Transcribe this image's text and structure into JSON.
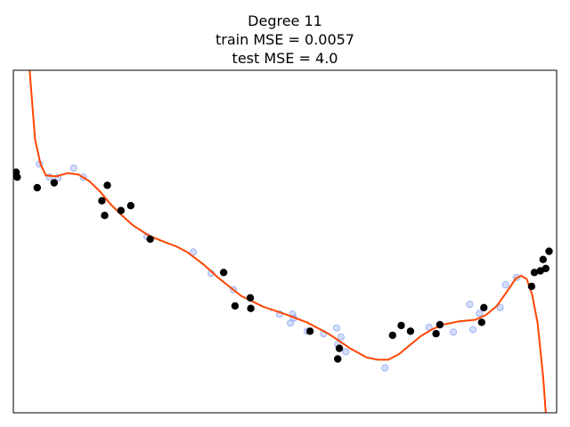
{
  "chart_data": {
    "type": "scatter",
    "title": [
      "Degree 11",
      "train MSE = 0.0057",
      "test MSE = 4.0"
    ],
    "xlabel": "",
    "ylabel": "",
    "xlim": [
      0,
      1
    ],
    "ylim": [
      -2.0,
      2.2
    ],
    "ticks": "none",
    "grid": false,
    "colors": {
      "train": "#6f8ff0",
      "test": "#000000",
      "fit": "#ff4500"
    },
    "series": [
      {
        "role": "train",
        "points": [
          {
            "x": 0.048,
            "y": 1.05
          },
          {
            "x": 0.066,
            "y": 0.89
          },
          {
            "x": 0.082,
            "y": 0.88
          },
          {
            "x": 0.111,
            "y": 1.0
          },
          {
            "x": 0.129,
            "y": 0.89
          },
          {
            "x": 0.246,
            "y": 0.16
          },
          {
            "x": 0.331,
            "y": -0.03
          },
          {
            "x": 0.364,
            "y": -0.29
          },
          {
            "x": 0.405,
            "y": -0.49
          },
          {
            "x": 0.49,
            "y": -0.79
          },
          {
            "x": 0.51,
            "y": -0.9
          },
          {
            "x": 0.514,
            "y": -0.79
          },
          {
            "x": 0.516,
            "y": -0.84
          },
          {
            "x": 0.541,
            "y": -1.0
          },
          {
            "x": 0.571,
            "y": -1.03
          },
          {
            "x": 0.595,
            "y": -0.96
          },
          {
            "x": 0.597,
            "y": -1.16
          },
          {
            "x": 0.603,
            "y": -1.07
          },
          {
            "x": 0.612,
            "y": -1.25
          },
          {
            "x": 0.684,
            "y": -1.45
          },
          {
            "x": 0.765,
            "y": -0.95
          },
          {
            "x": 0.81,
            "y": -1.01
          },
          {
            "x": 0.84,
            "y": -0.67
          },
          {
            "x": 0.846,
            "y": -0.98
          },
          {
            "x": 0.858,
            "y": -0.78
          },
          {
            "x": 0.896,
            "y": -0.71
          },
          {
            "x": 0.906,
            "y": -0.43
          },
          {
            "x": 0.926,
            "y": -0.34
          }
        ]
      },
      {
        "role": "test",
        "points": [
          {
            "x": 0.005,
            "y": 0.95
          },
          {
            "x": 0.007,
            "y": 0.89
          },
          {
            "x": 0.044,
            "y": 0.76
          },
          {
            "x": 0.075,
            "y": 0.82
          },
          {
            "x": 0.163,
            "y": 0.6
          },
          {
            "x": 0.168,
            "y": 0.42
          },
          {
            "x": 0.173,
            "y": 0.79
          },
          {
            "x": 0.198,
            "y": 0.48
          },
          {
            "x": 0.216,
            "y": 0.54
          },
          {
            "x": 0.252,
            "y": 0.13
          },
          {
            "x": 0.387,
            "y": -0.28
          },
          {
            "x": 0.408,
            "y": -0.69
          },
          {
            "x": 0.436,
            "y": -0.59
          },
          {
            "x": 0.437,
            "y": -0.72
          },
          {
            "x": 0.546,
            "y": -1.0
          },
          {
            "x": 0.6,
            "y": -1.21
          },
          {
            "x": 0.597,
            "y": -1.34
          },
          {
            "x": 0.698,
            "y": -1.05
          },
          {
            "x": 0.714,
            "y": -0.93
          },
          {
            "x": 0.731,
            "y": -1.0
          },
          {
            "x": 0.778,
            "y": -1.03
          },
          {
            "x": 0.785,
            "y": -0.92
          },
          {
            "x": 0.862,
            "y": -0.89
          },
          {
            "x": 0.866,
            "y": -0.71
          },
          {
            "x": 0.954,
            "y": -0.45
          },
          {
            "x": 0.959,
            "y": -0.28
          },
          {
            "x": 0.97,
            "y": -0.26
          },
          {
            "x": 0.975,
            "y": -0.12
          },
          {
            "x": 0.98,
            "y": -0.23
          },
          {
            "x": 0.986,
            "y": -0.02
          }
        ]
      },
      {
        "role": "fit",
        "type": "line",
        "points": [
          {
            "x": 0.03,
            "y": 2.2
          },
          {
            "x": 0.04,
            "y": 1.35
          },
          {
            "x": 0.05,
            "y": 1.05
          },
          {
            "x": 0.06,
            "y": 0.91
          },
          {
            "x": 0.08,
            "y": 0.9
          },
          {
            "x": 0.1,
            "y": 0.94
          },
          {
            "x": 0.12,
            "y": 0.92
          },
          {
            "x": 0.14,
            "y": 0.84
          },
          {
            "x": 0.16,
            "y": 0.71
          },
          {
            "x": 0.18,
            "y": 0.55
          },
          {
            "x": 0.2,
            "y": 0.42
          },
          {
            "x": 0.22,
            "y": 0.3
          },
          {
            "x": 0.25,
            "y": 0.17
          },
          {
            "x": 0.28,
            "y": 0.09
          },
          {
            "x": 0.3,
            "y": 0.04
          },
          {
            "x": 0.32,
            "y": -0.03
          },
          {
            "x": 0.35,
            "y": -0.18
          },
          {
            "x": 0.38,
            "y": -0.36
          },
          {
            "x": 0.42,
            "y": -0.57
          },
          {
            "x": 0.46,
            "y": -0.7
          },
          {
            "x": 0.5,
            "y": -0.79
          },
          {
            "x": 0.54,
            "y": -0.89
          },
          {
            "x": 0.58,
            "y": -1.03
          },
          {
            "x": 0.62,
            "y": -1.21
          },
          {
            "x": 0.65,
            "y": -1.32
          },
          {
            "x": 0.67,
            "y": -1.35
          },
          {
            "x": 0.69,
            "y": -1.35
          },
          {
            "x": 0.71,
            "y": -1.28
          },
          {
            "x": 0.73,
            "y": -1.17
          },
          {
            "x": 0.75,
            "y": -1.06
          },
          {
            "x": 0.77,
            "y": -0.98
          },
          {
            "x": 0.79,
            "y": -0.92
          },
          {
            "x": 0.82,
            "y": -0.88
          },
          {
            "x": 0.85,
            "y": -0.86
          },
          {
            "x": 0.87,
            "y": -0.8
          },
          {
            "x": 0.89,
            "y": -0.69
          },
          {
            "x": 0.91,
            "y": -0.5
          },
          {
            "x": 0.925,
            "y": -0.35
          },
          {
            "x": 0.935,
            "y": -0.32
          },
          {
            "x": 0.945,
            "y": -0.36
          },
          {
            "x": 0.955,
            "y": -0.55
          },
          {
            "x": 0.965,
            "y": -0.9
          },
          {
            "x": 0.975,
            "y": -1.55
          },
          {
            "x": 0.98,
            "y": -2.0
          }
        ]
      }
    ]
  }
}
